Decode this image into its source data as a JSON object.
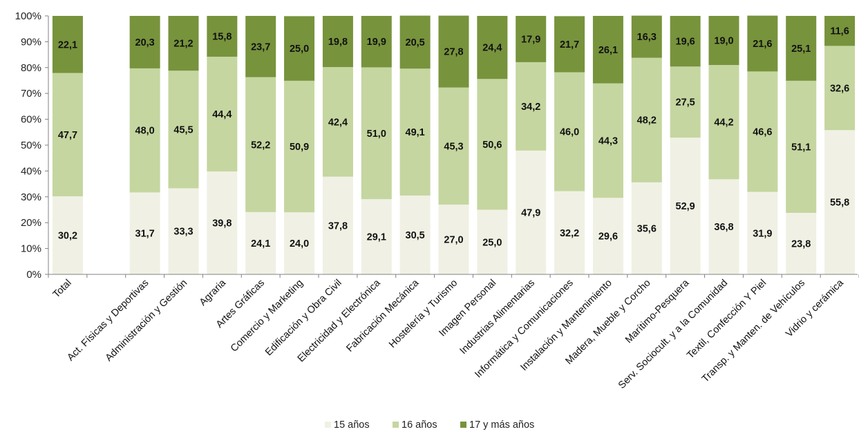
{
  "chart_data": {
    "type": "bar",
    "stacked": true,
    "percent": true,
    "title": "",
    "xlabel": "",
    "ylabel": "",
    "ylim": [
      0,
      100
    ],
    "yticks": [
      "0%",
      "10%",
      "20%",
      "30%",
      "40%",
      "50%",
      "60%",
      "70%",
      "80%",
      "90%",
      "100%"
    ],
    "categories": [
      "Total",
      "",
      "Act. Físicas y Deportivas",
      "Administración y Gestión",
      "Agraria",
      "Artes Gráficas",
      "Comercio y Marketing",
      "Edificación y Obra Civil",
      "Electricidad y Electrónica",
      "Fabricación Mecánica",
      "Hostelería y Turismo",
      "Imagen Personal",
      "Industrias Alimentarias",
      "Informática y Comunicaciones",
      "Instalación y Mantenimiento",
      "Madera, Mueble y Corcho",
      "Marítimo-Pesquera",
      "Serv. Sociocult. y a la Comunidad",
      "Textil, Confección Y Piel",
      "Transp. y Manten. de Vehículos",
      "Vidrio y cerámica"
    ],
    "series": [
      {
        "name": "15 años",
        "color": "#f0f1e4",
        "values": [
          30.2,
          null,
          31.7,
          33.3,
          39.8,
          24.1,
          24.0,
          37.8,
          29.1,
          30.5,
          27.0,
          25.0,
          47.9,
          32.2,
          29.6,
          35.6,
          52.9,
          36.8,
          31.9,
          23.8,
          55.8
        ],
        "labels": [
          "30,2",
          "",
          "31,7",
          "33,3",
          "39,8",
          "24,1",
          "24,0",
          "37,8",
          "29,1",
          "30,5",
          "27,0",
          "25,0",
          "47,9",
          "32,2",
          "29,6",
          "35,6",
          "52,9",
          "36,8",
          "31,9",
          "23,8",
          "55,8"
        ]
      },
      {
        "name": "16 años",
        "color": "#c5d6a0",
        "values": [
          47.7,
          null,
          48.0,
          45.5,
          44.4,
          52.2,
          50.9,
          42.4,
          51.0,
          49.1,
          45.3,
          50.6,
          34.2,
          46.0,
          44.3,
          48.2,
          27.5,
          44.2,
          46.6,
          51.1,
          32.6
        ],
        "labels": [
          "47,7",
          "",
          "48,0",
          "45,5",
          "44,4",
          "52,2",
          "50,9",
          "42,4",
          "51,0",
          "49,1",
          "45,3",
          "50,6",
          "34,2",
          "46,0",
          "44,3",
          "48,2",
          "27,5",
          "44,2",
          "46,6",
          "51,1",
          "32,6"
        ]
      },
      {
        "name": "17 y más años",
        "color": "#77933c",
        "values": [
          22.1,
          null,
          20.3,
          21.2,
          15.8,
          23.7,
          25.0,
          19.8,
          19.9,
          20.5,
          27.8,
          24.4,
          17.9,
          21.7,
          26.1,
          16.3,
          19.6,
          19.0,
          21.6,
          25.1,
          11.6
        ],
        "labels": [
          "22,1",
          "",
          "20,3",
          "21,2",
          "15,8",
          "23,7",
          "25,0",
          "19,8",
          "19,9",
          "20,5",
          "27,8",
          "24,4",
          "17,9",
          "21,7",
          "26,1",
          "16,3",
          "19,6",
          "19,0",
          "21,6",
          "25,1",
          "11,6"
        ]
      }
    ],
    "legend_position": "bottom",
    "grid": false
  }
}
